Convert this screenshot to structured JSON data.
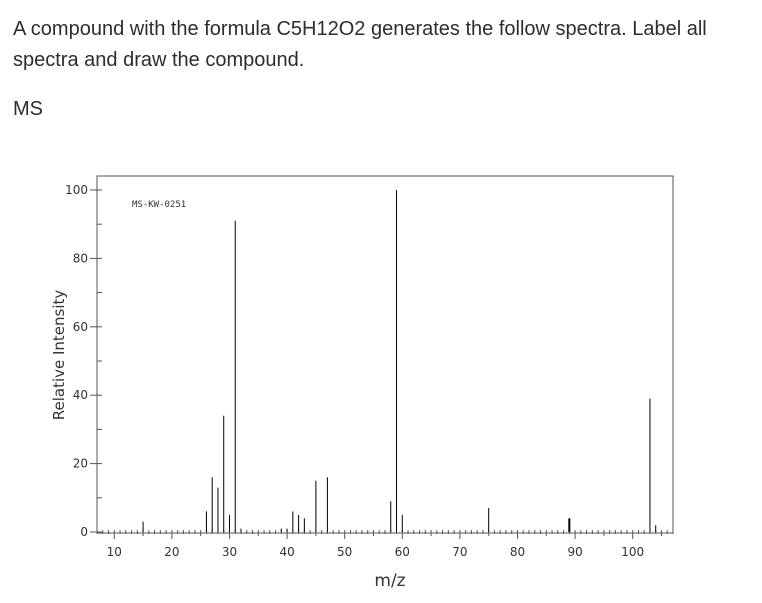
{
  "question": {
    "text": "A compound with the formula C5H12O2 generates the follow spectra. Label all spectra and draw the compound."
  },
  "section_label": "MS",
  "chart_data": {
    "type": "bar",
    "title": "",
    "annotation": "MS-KW-0251",
    "xlabel": "m/z",
    "ylabel": "Relative Intensity",
    "xlim": [
      7,
      107
    ],
    "ylim": [
      0,
      100
    ],
    "xticks": [
      10,
      20,
      30,
      40,
      50,
      60,
      70,
      80,
      90,
      100
    ],
    "yticks": [
      0,
      20,
      40,
      60,
      80,
      100
    ],
    "grid": false,
    "legend": "none",
    "colors": {
      "bars": "#000000",
      "axis": "#555555"
    },
    "x": [
      15,
      26,
      27,
      28,
      29,
      30,
      31,
      32,
      39,
      40,
      41,
      42,
      43,
      45,
      47,
      58,
      59,
      60,
      75,
      89,
      103,
      104
    ],
    "values": [
      3,
      6,
      16,
      13,
      34,
      5,
      91,
      1,
      1,
      1,
      6,
      5,
      4,
      15,
      16,
      9,
      100,
      5,
      7,
      4,
      39,
      2
    ]
  }
}
